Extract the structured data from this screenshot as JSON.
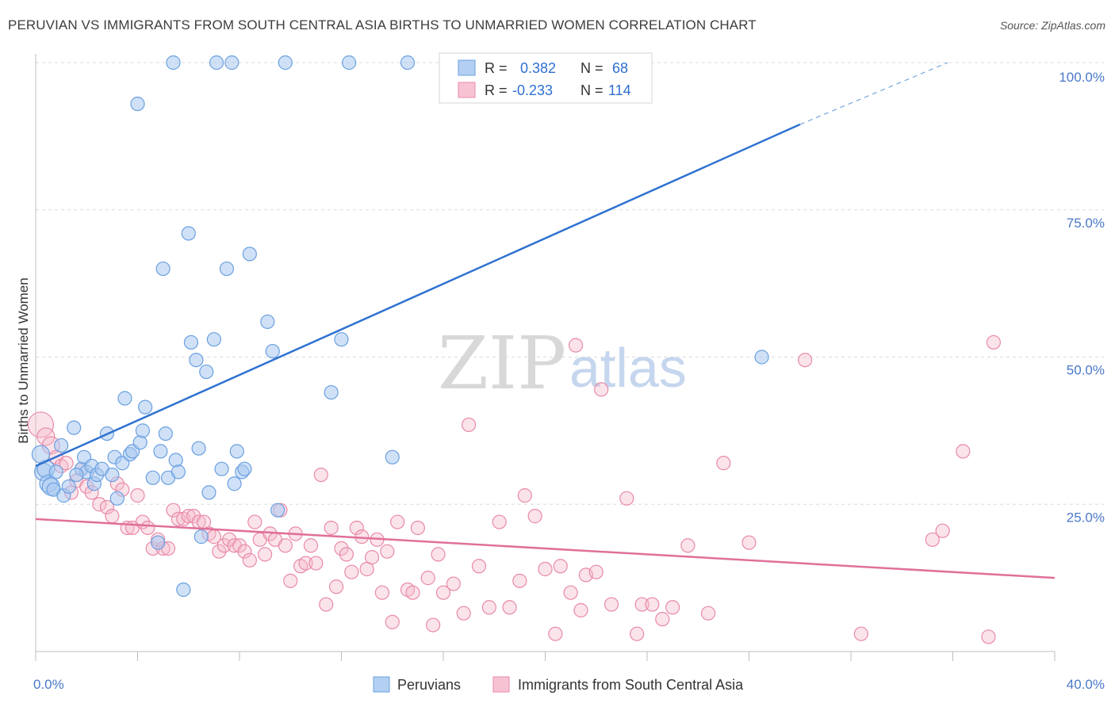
{
  "chart_data": {
    "type": "scatter",
    "title": "PERUVIAN VS IMMIGRANTS FROM SOUTH CENTRAL ASIA BIRTHS TO UNMARRIED WOMEN CORRELATION CHART",
    "source": "Source: ZipAtlas.com",
    "xlabel": "",
    "ylabel": "Births to Unmarried Women",
    "xlim": [
      0,
      40
    ],
    "ylim": [
      0,
      100
    ],
    "x_tick_labels": [
      "0.0%",
      "40.0%"
    ],
    "y_ticks": [
      25,
      50,
      75,
      100
    ],
    "y_tick_labels": [
      "25.0%",
      "50.0%",
      "75.0%",
      "100.0%"
    ],
    "watermark": {
      "part1": "ZIP",
      "part2": "atlas"
    },
    "legend": [
      {
        "r_label": "R =",
        "r_value": "0.382",
        "n_label": "N =",
        "n_value": "68"
      },
      {
        "r_label": "R =",
        "r_value": "-0.233",
        "n_label": "N =",
        "n_value": "114"
      }
    ],
    "series": [
      {
        "name": "Peruvians",
        "color": "#6aa0e0",
        "fill": "#a9c8f0",
        "trend": {
          "x0": 0,
          "y0": 31.5,
          "x1": 30,
          "y1": 89.5,
          "dash_x1": 35.8,
          "dash_y1": 100
        },
        "points": [
          [
            0.3,
            30.5
          ],
          [
            0.4,
            31.0
          ],
          [
            0.5,
            28.5
          ],
          [
            0.6,
            28.0
          ],
          [
            0.7,
            27.5
          ],
          [
            0.8,
            30.5
          ],
          [
            1.0,
            35.0
          ],
          [
            1.1,
            26.5
          ],
          [
            1.3,
            28.0
          ],
          [
            1.5,
            38.0
          ],
          [
            1.8,
            31.0
          ],
          [
            1.9,
            33.0
          ],
          [
            2.0,
            30.5
          ],
          [
            2.2,
            31.5
          ],
          [
            2.3,
            28.5
          ],
          [
            2.4,
            30.0
          ],
          [
            2.6,
            31.0
          ],
          [
            2.8,
            37.0
          ],
          [
            3.0,
            30.0
          ],
          [
            3.1,
            33.0
          ],
          [
            3.2,
            26.0
          ],
          [
            3.4,
            32.0
          ],
          [
            3.5,
            43.0
          ],
          [
            3.7,
            33.5
          ],
          [
            3.8,
            34.0
          ],
          [
            4.0,
            93.0
          ],
          [
            4.1,
            35.5
          ],
          [
            4.2,
            37.5
          ],
          [
            4.3,
            41.5
          ],
          [
            4.6,
            29.5
          ],
          [
            4.8,
            18.5
          ],
          [
            4.9,
            34.0
          ],
          [
            5.0,
            65.0
          ],
          [
            5.1,
            37.0
          ],
          [
            5.2,
            29.5
          ],
          [
            5.4,
            100
          ],
          [
            5.5,
            32.5
          ],
          [
            5.6,
            30.5
          ],
          [
            5.8,
            10.5
          ],
          [
            6.0,
            71.0
          ],
          [
            6.1,
            52.5
          ],
          [
            6.3,
            49.5
          ],
          [
            6.4,
            34.5
          ],
          [
            6.5,
            19.5
          ],
          [
            6.7,
            47.5
          ],
          [
            6.8,
            27.0
          ],
          [
            7.0,
            53.0
          ],
          [
            7.1,
            100
          ],
          [
            7.3,
            31.0
          ],
          [
            7.5,
            65.0
          ],
          [
            7.7,
            100
          ],
          [
            7.8,
            28.5
          ],
          [
            7.9,
            34.0
          ],
          [
            8.1,
            30.5
          ],
          [
            8.2,
            31.0
          ],
          [
            8.4,
            67.5
          ],
          [
            9.1,
            56.0
          ],
          [
            9.3,
            51.0
          ],
          [
            9.5,
            24.0
          ],
          [
            9.8,
            100
          ],
          [
            11.6,
            44.0
          ],
          [
            12.0,
            53.0
          ],
          [
            12.3,
            100
          ],
          [
            14.0,
            33.0
          ],
          [
            14.6,
            100
          ],
          [
            28.5,
            50.0
          ],
          [
            0.2,
            33.5
          ],
          [
            1.6,
            30.0
          ]
        ]
      },
      {
        "name": "Immigrants from South Central Asia",
        "color": "#e88aa8",
        "fill": "#f4b8cb",
        "trend": {
          "x0": 0,
          "y0": 22.5,
          "x1": 40,
          "y1": 12.5
        },
        "points": [
          [
            0.2,
            38.5
          ],
          [
            0.4,
            36.5
          ],
          [
            0.6,
            35.0
          ],
          [
            0.8,
            33.0
          ],
          [
            1.0,
            31.5
          ],
          [
            1.2,
            32.0
          ],
          [
            1.4,
            27.0
          ],
          [
            1.6,
            29.0
          ],
          [
            1.8,
            31.0
          ],
          [
            2.0,
            28.0
          ],
          [
            2.2,
            27.0
          ],
          [
            2.5,
            25.0
          ],
          [
            2.8,
            24.5
          ],
          [
            3.0,
            23.0
          ],
          [
            3.2,
            28.5
          ],
          [
            3.4,
            27.5
          ],
          [
            3.6,
            21.0
          ],
          [
            3.8,
            21.0
          ],
          [
            4.0,
            26.5
          ],
          [
            4.2,
            22.0
          ],
          [
            4.4,
            21.0
          ],
          [
            4.6,
            17.5
          ],
          [
            4.8,
            19.0
          ],
          [
            5.0,
            17.5
          ],
          [
            5.2,
            17.5
          ],
          [
            5.4,
            24.0
          ],
          [
            5.6,
            22.5
          ],
          [
            5.8,
            22.5
          ],
          [
            6.0,
            23.0
          ],
          [
            6.2,
            23.0
          ],
          [
            6.4,
            22.0
          ],
          [
            6.6,
            22.0
          ],
          [
            6.8,
            20.0
          ],
          [
            7.0,
            19.5
          ],
          [
            7.2,
            17.0
          ],
          [
            7.4,
            18.0
          ],
          [
            7.6,
            19.0
          ],
          [
            7.8,
            18.0
          ],
          [
            8.0,
            18.0
          ],
          [
            8.2,
            17.0
          ],
          [
            8.4,
            15.5
          ],
          [
            8.6,
            22.0
          ],
          [
            8.8,
            19.0
          ],
          [
            9.0,
            16.5
          ],
          [
            9.2,
            20.0
          ],
          [
            9.4,
            19.0
          ],
          [
            9.6,
            24.0
          ],
          [
            9.8,
            18.0
          ],
          [
            10.0,
            12.0
          ],
          [
            10.2,
            20.0
          ],
          [
            10.4,
            14.5
          ],
          [
            10.6,
            15.0
          ],
          [
            10.8,
            18.0
          ],
          [
            11.0,
            15.0
          ],
          [
            11.2,
            30.0
          ],
          [
            11.4,
            8.0
          ],
          [
            11.6,
            21.0
          ],
          [
            11.8,
            11.0
          ],
          [
            12.0,
            17.5
          ],
          [
            12.2,
            16.5
          ],
          [
            12.4,
            13.5
          ],
          [
            12.6,
            21.0
          ],
          [
            12.8,
            19.5
          ],
          [
            13.0,
            14.0
          ],
          [
            13.2,
            16.0
          ],
          [
            13.4,
            19.0
          ],
          [
            13.6,
            10.0
          ],
          [
            13.8,
            17.0
          ],
          [
            14.0,
            5.0
          ],
          [
            14.2,
            22.0
          ],
          [
            14.6,
            10.5
          ],
          [
            14.8,
            10.0
          ],
          [
            15.0,
            21.0
          ],
          [
            15.4,
            12.5
          ],
          [
            15.6,
            4.5
          ],
          [
            15.8,
            16.5
          ],
          [
            16.0,
            10.0
          ],
          [
            16.4,
            11.5
          ],
          [
            16.8,
            6.5
          ],
          [
            17.0,
            38.5
          ],
          [
            17.4,
            14.5
          ],
          [
            17.8,
            7.5
          ],
          [
            18.2,
            22.0
          ],
          [
            18.6,
            7.5
          ],
          [
            19.0,
            12.0
          ],
          [
            19.2,
            26.5
          ],
          [
            19.6,
            23.0
          ],
          [
            20.0,
            14.0
          ],
          [
            20.4,
            3.0
          ],
          [
            20.6,
            14.5
          ],
          [
            21.0,
            10.0
          ],
          [
            21.2,
            52.0
          ],
          [
            21.4,
            7.0
          ],
          [
            21.6,
            13.0
          ],
          [
            22.0,
            13.5
          ],
          [
            22.2,
            44.5
          ],
          [
            22.6,
            8.0
          ],
          [
            23.2,
            26.0
          ],
          [
            23.6,
            3.0
          ],
          [
            23.8,
            8.0
          ],
          [
            24.2,
            8.0
          ],
          [
            24.6,
            5.5
          ],
          [
            25.0,
            7.5
          ],
          [
            25.6,
            18.0
          ],
          [
            26.4,
            6.5
          ],
          [
            27.0,
            32.0
          ],
          [
            28.0,
            18.5
          ],
          [
            30.2,
            49.5
          ],
          [
            32.4,
            3.0
          ],
          [
            35.2,
            19.0
          ],
          [
            35.6,
            20.5
          ],
          [
            36.4,
            34.0
          ],
          [
            37.4,
            2.5
          ],
          [
            37.6,
            52.5
          ]
        ]
      }
    ]
  }
}
